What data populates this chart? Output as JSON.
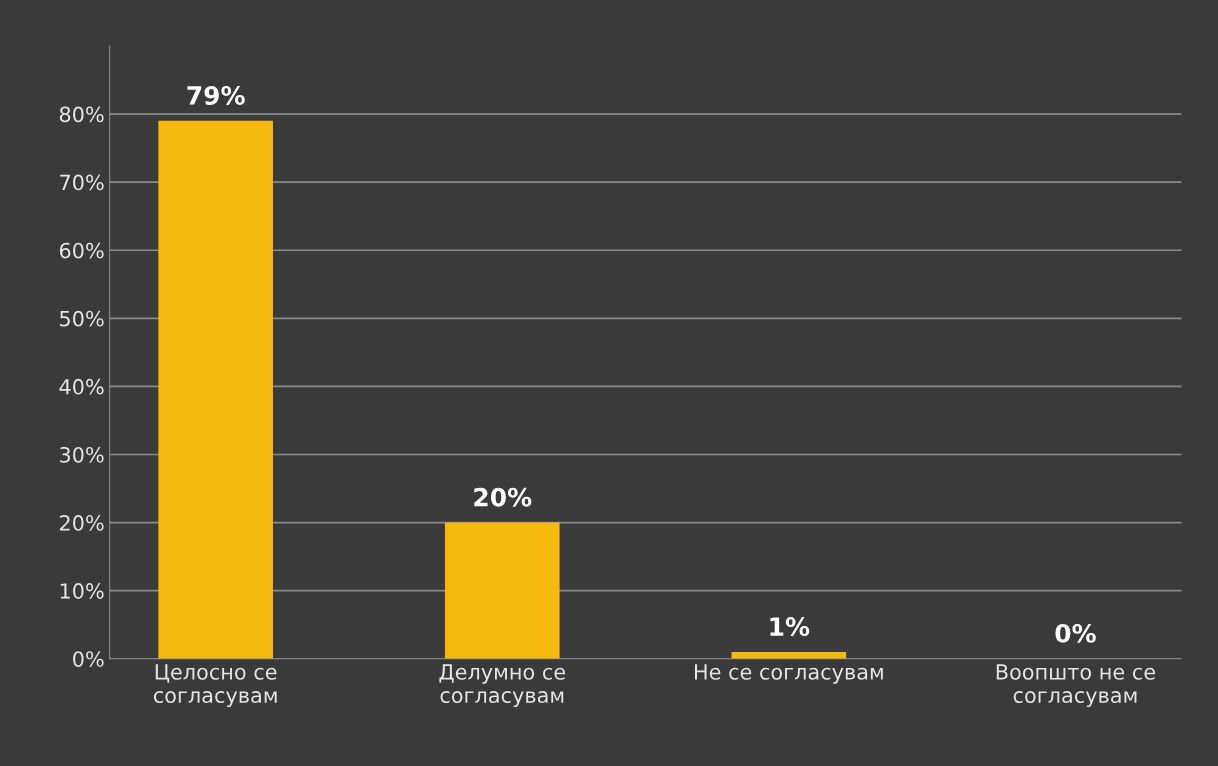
{
  "chart_data": {
    "type": "bar",
    "categories": [
      "Целосно се\nсогласувам",
      "Делумно се\nсогласувам",
      "Не се согласувам",
      "Воопшто не се\nсогласувам"
    ],
    "values": [
      79,
      20,
      1,
      0
    ],
    "value_labels": [
      "79%",
      "20%",
      "1%",
      "0%"
    ],
    "color": "#f5b90f",
    "ylim": [
      0,
      90
    ],
    "yticks": [
      {
        "value": 0,
        "label": "0%"
      },
      {
        "value": 10,
        "label": "10%"
      },
      {
        "value": 20,
        "label": "20%"
      },
      {
        "value": 30,
        "label": "30%"
      },
      {
        "value": 40,
        "label": "40%"
      },
      {
        "value": 50,
        "label": "50%"
      },
      {
        "value": 60,
        "label": "60%"
      },
      {
        "value": 70,
        "label": "70%"
      },
      {
        "value": 80,
        "label": "80%"
      }
    ],
    "grid": "y",
    "legend": false
  }
}
